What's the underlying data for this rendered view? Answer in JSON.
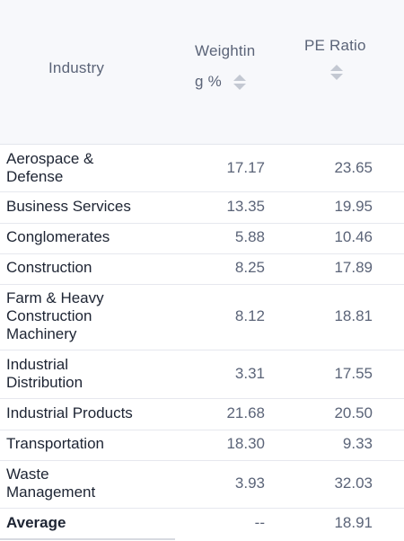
{
  "table": {
    "headers": {
      "industry": "Industry",
      "weighting_line1": "Weightin",
      "weighting_line2": "g %",
      "pe_ratio": "PE Ratio"
    },
    "rows": [
      {
        "industry": "Aerospace & Defense",
        "weighting": "17.17",
        "pe": "23.65"
      },
      {
        "industry": "Business Services",
        "weighting": "13.35",
        "pe": "19.95"
      },
      {
        "industry": "Conglomerates",
        "weighting": "5.88",
        "pe": "10.46"
      },
      {
        "industry": "Construction",
        "weighting": "8.25",
        "pe": "17.89"
      },
      {
        "industry": "Farm & Heavy Construction Machinery",
        "weighting": "8.12",
        "pe": "18.81"
      },
      {
        "industry": "Industrial Distribution",
        "weighting": "3.31",
        "pe": "17.55"
      },
      {
        "industry": "Industrial Products",
        "weighting": "21.68",
        "pe": "20.50"
      },
      {
        "industry": "Transportation",
        "weighting": "18.30",
        "pe": "9.33"
      },
      {
        "industry": "Waste Management",
        "weighting": "3.93",
        "pe": "32.03"
      }
    ],
    "average": {
      "label": "Average",
      "weighting": "--",
      "pe": "18.91"
    }
  },
  "icons": {
    "sort_weighting": "sort-icon",
    "sort_pe": "sort-icon"
  }
}
